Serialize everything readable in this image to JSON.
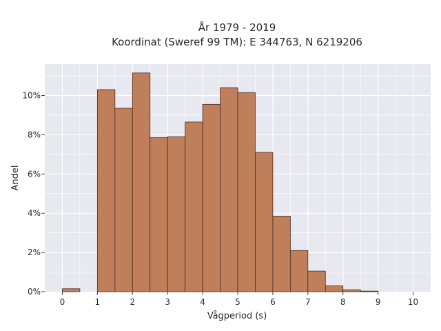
{
  "chart_data": {
    "type": "bar",
    "title_line1": "År 1979 - 2019",
    "title_line2": "Koordinat (Sweref 99 TM): E 344763, N 6219206",
    "xlabel": "Vågperiod (s)",
    "ylabel": "Andel",
    "xlim": [
      -0.5,
      10.5
    ],
    "ylim": [
      0,
      11.6
    ],
    "x_ticks": [
      0,
      1,
      2,
      3,
      4,
      5,
      6,
      7,
      8,
      9,
      10
    ],
    "x_tick_labels": [
      "0",
      "1",
      "2",
      "3",
      "4",
      "5",
      "6",
      "7",
      "8",
      "9",
      "10"
    ],
    "y_ticks": [
      0,
      2,
      4,
      6,
      8,
      10
    ],
    "y_tick_labels": [
      "0%",
      "2%",
      "4%",
      "6%",
      "8%",
      "10%"
    ],
    "bin_width": 0.5,
    "bins": [
      {
        "x0": 0.0,
        "value": 0.15
      },
      {
        "x0": 0.5,
        "value": 0
      },
      {
        "x0": 1.0,
        "value": 10.3
      },
      {
        "x0": 1.5,
        "value": 9.35
      },
      {
        "x0": 2.0,
        "value": 11.15
      },
      {
        "x0": 2.5,
        "value": 7.85
      },
      {
        "x0": 3.0,
        "value": 7.9
      },
      {
        "x0": 3.5,
        "value": 8.65
      },
      {
        "x0": 4.0,
        "value": 9.55
      },
      {
        "x0": 4.5,
        "value": 10.4
      },
      {
        "x0": 5.0,
        "value": 10.15
      },
      {
        "x0": 5.5,
        "value": 7.1
      },
      {
        "x0": 6.0,
        "value": 3.85
      },
      {
        "x0": 6.5,
        "value": 2.1
      },
      {
        "x0": 7.0,
        "value": 1.05
      },
      {
        "x0": 7.5,
        "value": 0.3
      },
      {
        "x0": 8.0,
        "value": 0.1
      },
      {
        "x0": 8.5,
        "value": 0.03
      }
    ],
    "grid": true,
    "colors": {
      "bar_fill": "#bf7f5a",
      "bar_edge": "#4a2c1e",
      "plot_bg": "#e8e8f0",
      "grid": "#ffffff"
    }
  }
}
